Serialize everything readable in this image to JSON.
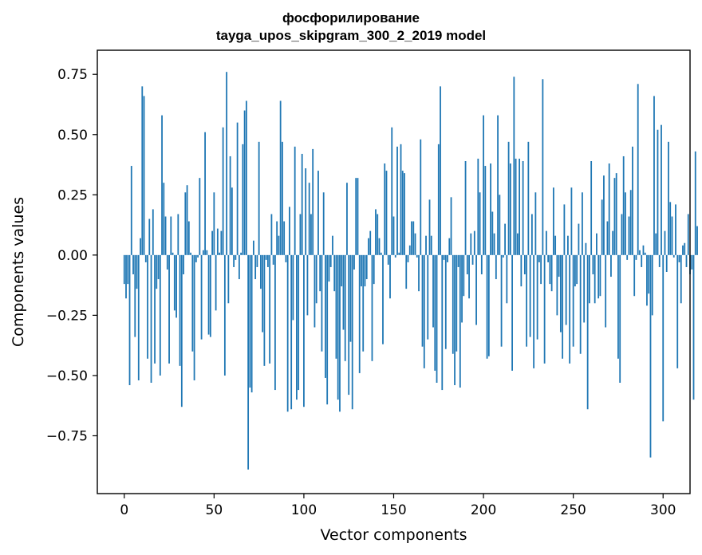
{
  "title_line1": "фосфорилирование",
  "title_line2": "tayga_upos_skipgram_300_2_2019 model",
  "chart_data": {
    "type": "bar",
    "xlabel": "Vector components",
    "ylabel": "Components values",
    "xlim": [
      -15,
      315
    ],
    "ylim": [
      -0.99,
      0.85
    ],
    "xticks": [
      0,
      50,
      100,
      150,
      200,
      250,
      300
    ],
    "xtick_labels": [
      "0",
      "50",
      "100",
      "150",
      "200",
      "250",
      "300"
    ],
    "yticks": [
      -0.75,
      -0.5,
      -0.25,
      0.0,
      0.25,
      0.5,
      0.75
    ],
    "ytick_labels": [
      "−0.75",
      "−0.50",
      "−0.25",
      "0.00",
      "0.25",
      "0.50",
      "0.75"
    ],
    "grid": false,
    "bar_color": "#1f77b4",
    "values": [
      -0.12,
      -0.18,
      -0.12,
      -0.54,
      0.37,
      -0.08,
      -0.34,
      -0.14,
      -0.52,
      0.07,
      0.7,
      0.66,
      -0.03,
      -0.43,
      0.15,
      -0.53,
      0.19,
      -0.45,
      -0.14,
      -0.1,
      -0.5,
      0.58,
      0.3,
      0.16,
      -0.06,
      -0.45,
      0.16,
      0.01,
      -0.23,
      -0.26,
      0.17,
      -0.46,
      -0.63,
      -0.08,
      0.26,
      0.29,
      0.14,
      0.01,
      -0.4,
      -0.52,
      -0.03,
      -0.01,
      0.32,
      -0.35,
      0.02,
      0.51,
      0.02,
      -0.33,
      -0.34,
      0.1,
      0.26,
      -0.23,
      0.11,
      0.01,
      0.1,
      0.53,
      -0.5,
      0.76,
      -0.2,
      0.41,
      0.28,
      -0.05,
      -0.02,
      0.55,
      -0.1,
      0.01,
      0.46,
      0.6,
      0.64,
      -0.89,
      -0.55,
      -0.57,
      0.06,
      -0.1,
      -0.05,
      0.47,
      -0.14,
      -0.32,
      -0.46,
      -0.02,
      -0.05,
      -0.45,
      0.17,
      -0.04,
      -0.56,
      0.14,
      0.08,
      0.64,
      0.47,
      0.14,
      -0.03,
      -0.65,
      0.2,
      -0.64,
      -0.27,
      0.45,
      -0.6,
      -0.56,
      0.17,
      0.42,
      -0.63,
      0.36,
      -0.25,
      0.3,
      0.17,
      0.44,
      -0.3,
      -0.2,
      0.35,
      -0.15,
      -0.4,
      0.26,
      -0.51,
      -0.62,
      -0.11,
      -0.05,
      0.08,
      -0.15,
      -0.43,
      -0.6,
      -0.65,
      -0.13,
      -0.31,
      -0.44,
      0.3,
      -0.58,
      -0.36,
      -0.64,
      -0.06,
      0.32,
      0.32,
      -0.49,
      -0.13,
      -0.4,
      -0.13,
      -0.1,
      0.07,
      0.1,
      -0.44,
      -0.12,
      0.19,
      0.17,
      0.07,
      0.01,
      -0.37,
      0.38,
      0.35,
      -0.04,
      -0.18,
      0.53,
      0.16,
      -0.01,
      0.45,
      0.01,
      0.46,
      0.35,
      0.34,
      -0.14,
      -0.03,
      0.04,
      0.14,
      0.14,
      0.09,
      -0.01,
      -0.15,
      0.48,
      -0.38,
      -0.47,
      0.08,
      -0.35,
      0.23,
      0.08,
      -0.3,
      -0.48,
      -0.53,
      0.46,
      0.7,
      -0.56,
      -0.02,
      -0.39,
      -0.03,
      0.07,
      0.24,
      -0.41,
      -0.54,
      -0.4,
      -0.05,
      -0.55,
      -0.28,
      -0.17,
      0.39,
      -0.08,
      -0.18,
      0.09,
      -0.04,
      0.1,
      -0.29,
      0.4,
      0.26,
      -0.08,
      0.58,
      0.37,
      -0.43,
      -0.42,
      0.38,
      0.18,
      0.09,
      -0.1,
      0.58,
      0.25,
      -0.38,
      -0.01,
      0.13,
      -0.2,
      0.47,
      0.38,
      -0.48,
      0.74,
      0.4,
      0.09,
      0.4,
      -0.13,
      0.39,
      -0.08,
      -0.38,
      0.47,
      -0.34,
      0.17,
      -0.47,
      0.26,
      -0.35,
      -0.03,
      -0.12,
      0.73,
      -0.45,
      0.1,
      -0.03,
      -0.12,
      -0.15,
      0.28,
      0.08,
      -0.25,
      -0.09,
      -0.32,
      -0.43,
      0.21,
      -0.29,
      0.08,
      -0.45,
      0.28,
      -0.38,
      -0.13,
      -0.12,
      0.13,
      -0.41,
      0.26,
      -0.28,
      0.05,
      -0.64,
      -0.2,
      0.39,
      -0.08,
      -0.2,
      0.09,
      -0.18,
      -0.17,
      0.23,
      0.33,
      -0.3,
      0.14,
      0.38,
      -0.09,
      0.1,
      0.32,
      0.34,
      -0.43,
      -0.53,
      0.17,
      0.41,
      0.26,
      -0.02,
      0.16,
      0.27,
      0.45,
      -0.17,
      -0.02,
      0.71,
      0.02,
      -0.05,
      0.04,
      0.01,
      -0.21,
      -0.16,
      -0.84,
      -0.25,
      0.66,
      0.09,
      0.52,
      -0.05,
      0.54,
      -0.69,
      0.1,
      -0.07,
      0.47,
      0.22,
      0.16,
      -0.01,
      0.21,
      -0.47,
      -0.03,
      -0.2,
      0.04,
      0.05,
      -0.05,
      0.17,
      -0.08,
      -0.06,
      -0.6,
      0.43,
      0.12
    ]
  }
}
